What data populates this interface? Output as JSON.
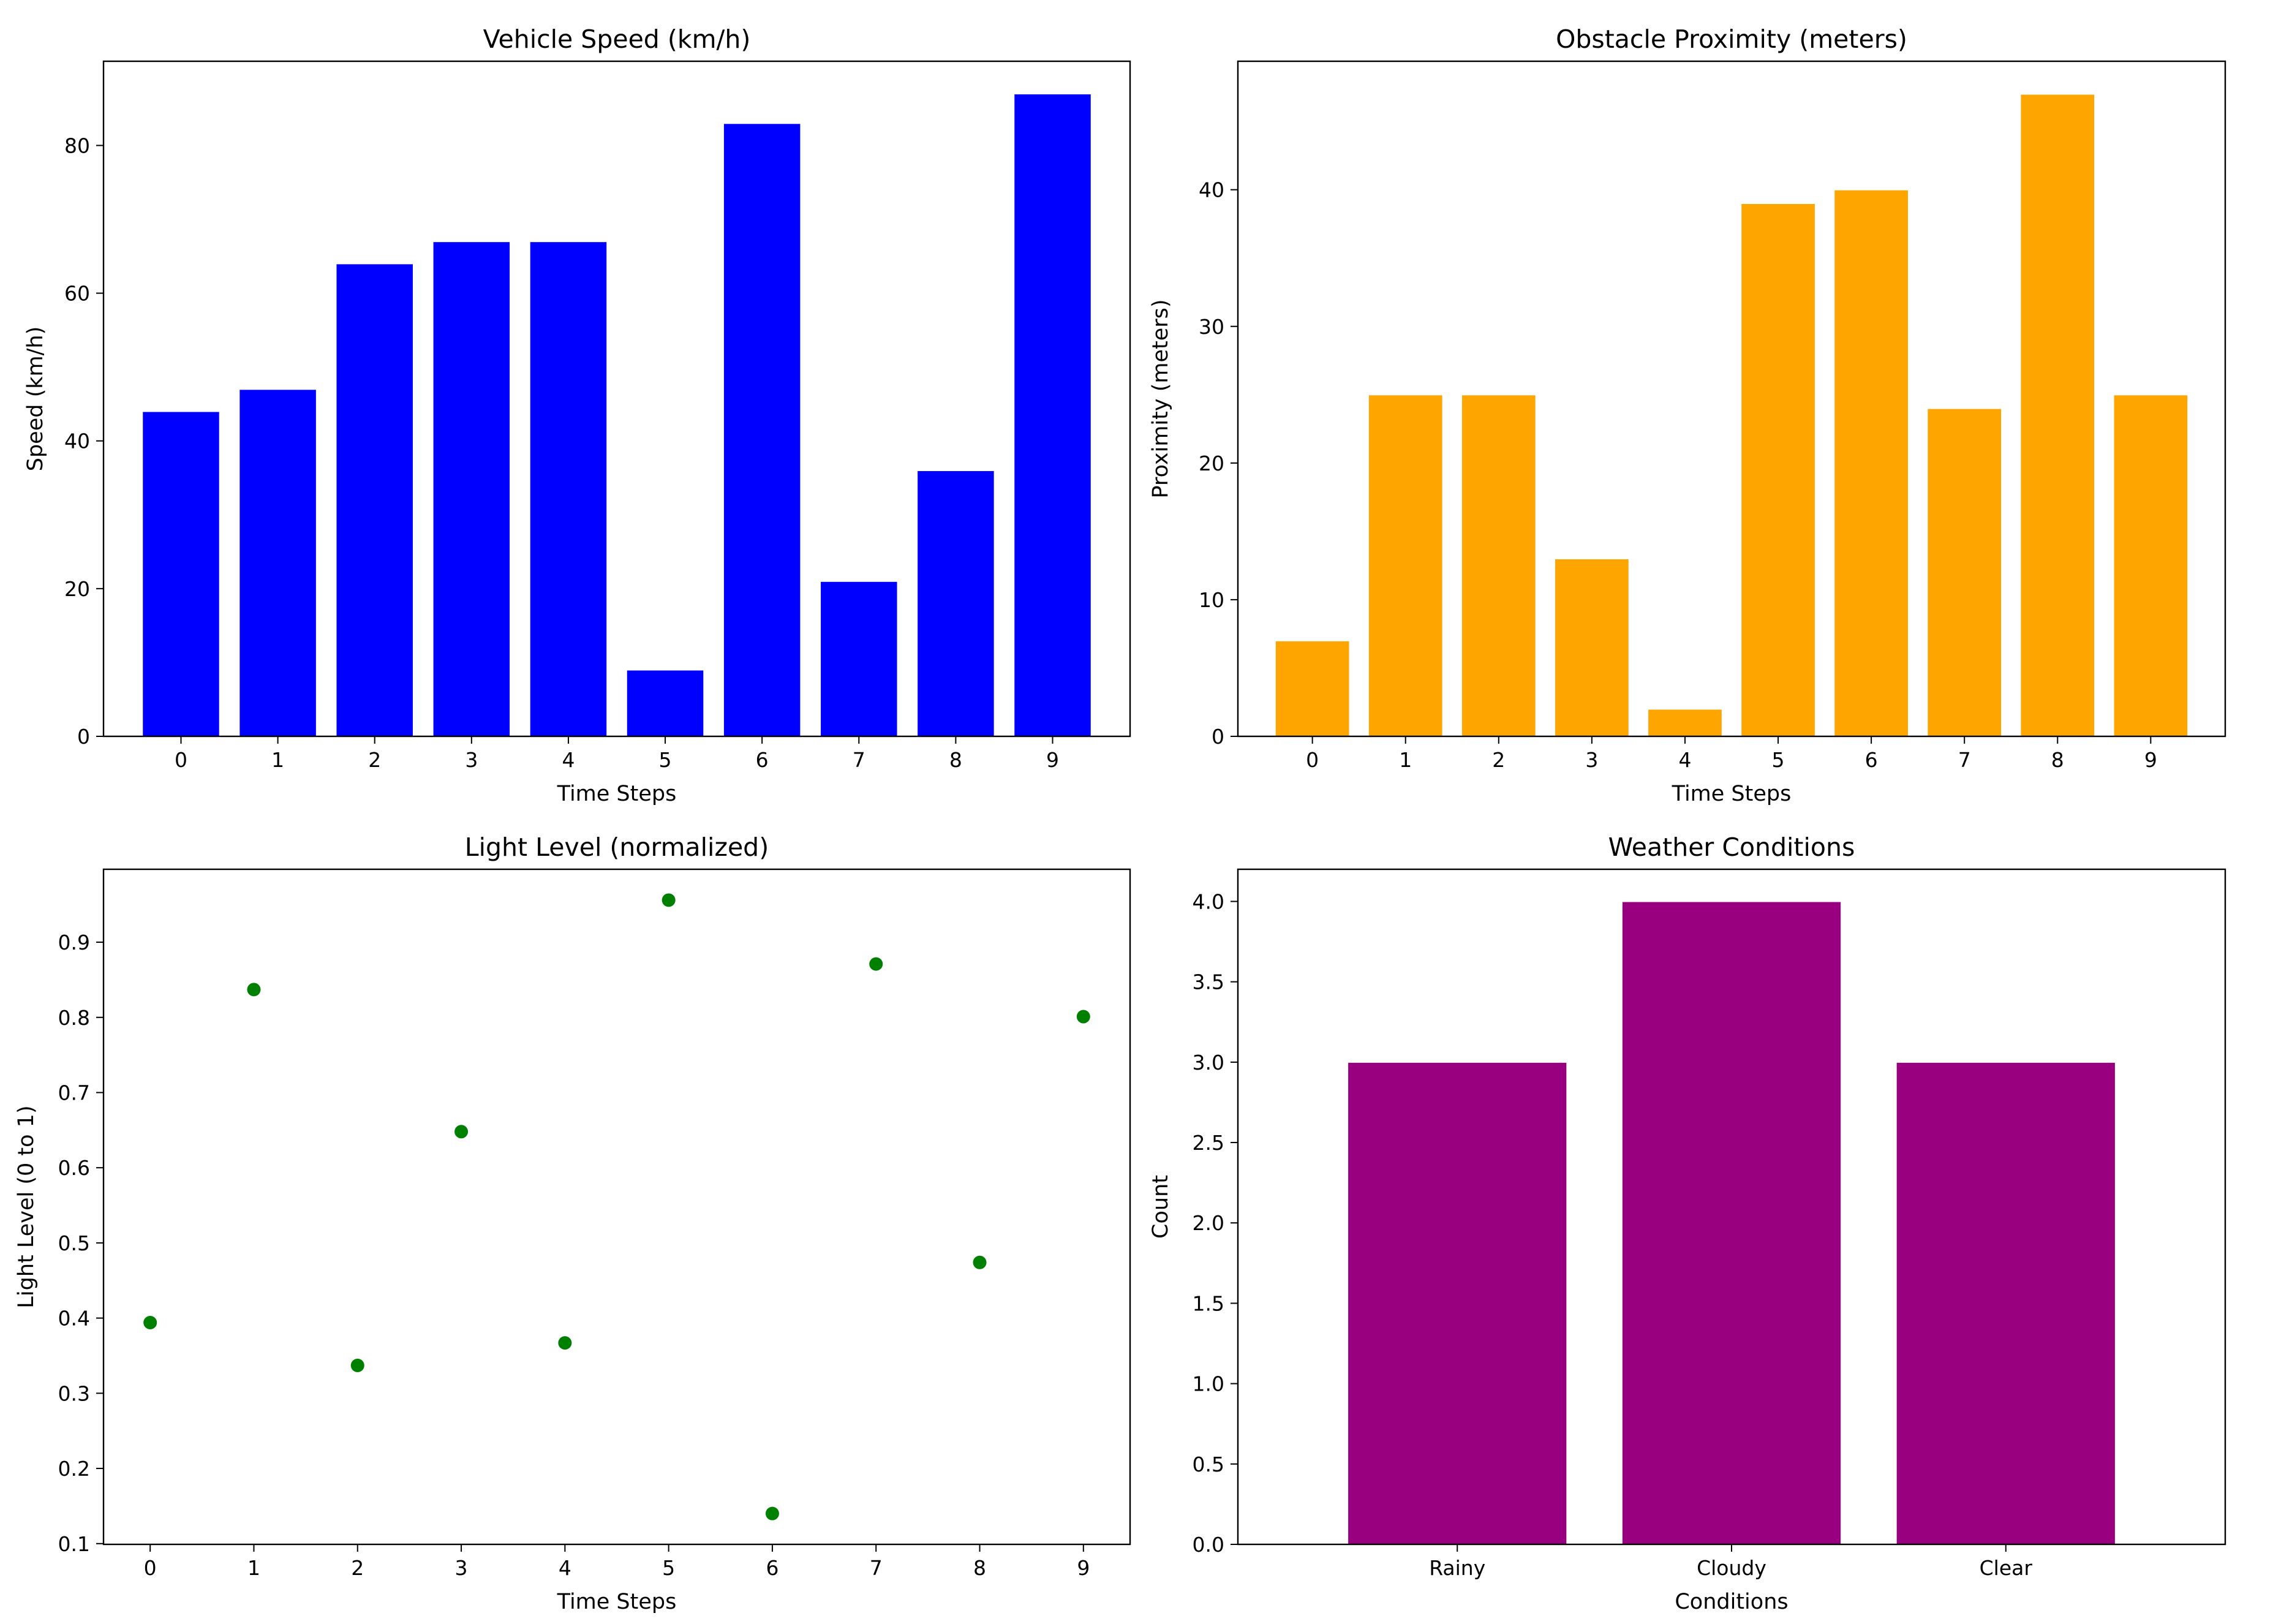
{
  "chart_data": [
    {
      "type": "bar",
      "title": "Vehicle Speed (km/h)",
      "xlabel": "Time Steps",
      "ylabel": "Speed (km/h)",
      "categories": [
        "0",
        "1",
        "2",
        "3",
        "4",
        "5",
        "6",
        "7",
        "8",
        "9"
      ],
      "values": [
        44,
        47,
        64,
        67,
        67,
        9,
        83,
        21,
        36,
        87
      ],
      "ylim": [
        0,
        91.4
      ],
      "yticks": [
        0,
        20,
        40,
        60,
        80
      ],
      "color": "#0000ff",
      "grid": false
    },
    {
      "type": "bar",
      "title": "Obstacle Proximity (meters)",
      "xlabel": "Time Steps",
      "ylabel": "Proximity (meters)",
      "categories": [
        "0",
        "1",
        "2",
        "3",
        "4",
        "5",
        "6",
        "7",
        "8",
        "9"
      ],
      "values": [
        7,
        25,
        25,
        13,
        2,
        39,
        40,
        24,
        47,
        25
      ],
      "ylim": [
        0,
        49.4
      ],
      "yticks": [
        0,
        10,
        20,
        30,
        40
      ],
      "color": "#ffa500",
      "grid": false
    },
    {
      "type": "scatter",
      "title": "Light Level (normalized)",
      "xlabel": "Time Steps",
      "ylabel": "Light Level (0 to 1)",
      "x": [
        0,
        1,
        2,
        3,
        4,
        5,
        6,
        7,
        8,
        9
      ],
      "y": [
        0.394,
        0.837,
        0.337,
        0.648,
        0.367,
        0.956,
        0.14,
        0.871,
        0.474,
        0.801
      ],
      "xlim": [
        -0.45,
        9.45
      ],
      "ylim": [
        0.099,
        0.997
      ],
      "xticks": [
        0,
        1,
        2,
        3,
        4,
        5,
        6,
        7,
        8,
        9
      ],
      "yticks": [
        0.1,
        0.2,
        0.3,
        0.4,
        0.5,
        0.6,
        0.7,
        0.8,
        0.9
      ],
      "color": "#008000",
      "grid": false
    },
    {
      "type": "bar",
      "title": "Weather Conditions",
      "xlabel": "Conditions",
      "ylabel": "Count",
      "categories": [
        "Rainy",
        "Cloudy",
        "Clear"
      ],
      "values": [
        3,
        4,
        3
      ],
      "ylim": [
        0,
        4.2
      ],
      "yticks": [
        0.0,
        0.5,
        1.0,
        1.5,
        2.0,
        2.5,
        3.0,
        3.5,
        4.0
      ],
      "ytick_decimals": 1,
      "color": "#990080",
      "grid": false
    }
  ]
}
